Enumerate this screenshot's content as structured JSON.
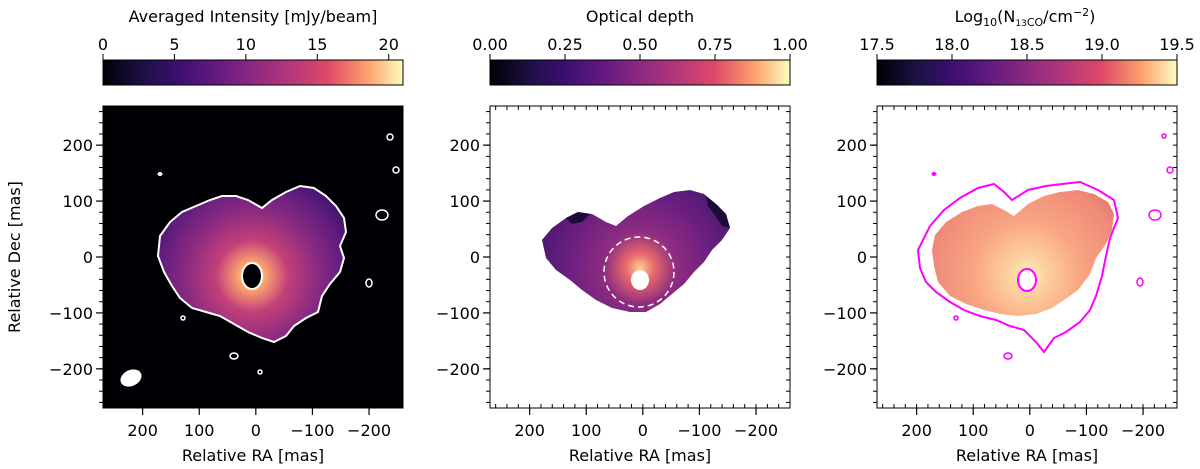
{
  "figure": {
    "name": "three-panel 13CO map"
  },
  "chart_data": [
    {
      "type": "heatmap",
      "panel": "averaged-intensity",
      "colorbar": {
        "label": "Averaged Intensity [mJy/beam]",
        "range": [
          0,
          21
        ],
        "ticks": [
          0,
          5,
          10,
          15,
          20
        ],
        "tick_labels": [
          "0",
          "5",
          "10",
          "15",
          "20"
        ],
        "colormap": "magma"
      },
      "xlabel": "Relative RA [mas]",
      "ylabel": "Relative Dec [mas]",
      "xlim": [
        270,
        -260
      ],
      "ylim": [
        -270,
        270
      ],
      "xticks": [
        200,
        100,
        0,
        -100,
        -200
      ],
      "xtick_labels": [
        "200",
        "100",
        "0",
        "−100",
        "−200"
      ],
      "yticks": [
        200,
        100,
        0,
        -100,
        -200
      ],
      "ytick_labels": [
        "200",
        "100",
        "0",
        "−100",
        "−200"
      ],
      "background": "#000004",
      "contour_color": "#ffffff",
      "annotations": [
        "beam ellipse (bottom-left)",
        "white emission contour"
      ]
    },
    {
      "type": "heatmap",
      "panel": "optical-depth",
      "colorbar": {
        "label": "Optical depth",
        "range": [
          0.0,
          1.0
        ],
        "ticks": [
          0.0,
          0.25,
          0.5,
          0.75,
          1.0
        ],
        "tick_labels": [
          "0.00",
          "0.25",
          "0.50",
          "0.75",
          "1.00"
        ],
        "colormap": "magma"
      },
      "xlabel": "Relative RA [mas]",
      "xlim": [
        270,
        -260
      ],
      "ylim": [
        -270,
        270
      ],
      "xticks": [
        200,
        100,
        0,
        -100,
        -200
      ],
      "xtick_labels": [
        "200",
        "100",
        "0",
        "−100",
        "−200"
      ],
      "yticks": [
        200,
        100,
        0,
        -100,
        -200
      ],
      "ytick_labels": [
        "200",
        "100",
        "0",
        "−100",
        "−200"
      ],
      "background": "#ffffff",
      "annotations": [
        "dashed white circle around central hole"
      ]
    },
    {
      "type": "heatmap",
      "panel": "column-density",
      "colorbar": {
        "label_main": "Log",
        "label_sub10": "10",
        "label_mid": "(N",
        "label_sub_iso": "13",
        "label_sub_mol": "CO",
        "label_unit": "/cm",
        "label_sup": "−2",
        "label_close": ")",
        "range": [
          17.5,
          19.5
        ],
        "ticks": [
          17.5,
          18.0,
          18.5,
          19.0,
          19.5
        ],
        "tick_labels": [
          "17.5",
          "18.0",
          "18.5",
          "19.0",
          "19.5"
        ],
        "colormap": "magma"
      },
      "xlabel": "Relative RA [mas]",
      "xlim": [
        270,
        -260
      ],
      "ylim": [
        -270,
        270
      ],
      "xticks": [
        200,
        100,
        0,
        -100,
        -200
      ],
      "xtick_labels": [
        "200",
        "100",
        "0",
        "−100",
        "−200"
      ],
      "yticks": [
        200,
        100,
        0,
        -100,
        -200
      ],
      "ytick_labels": [
        "200",
        "100",
        "0",
        "−100",
        "−200"
      ],
      "background": "#ffffff",
      "contour_color": "#ff00ff",
      "annotations": [
        "magenta emission contour"
      ]
    }
  ]
}
